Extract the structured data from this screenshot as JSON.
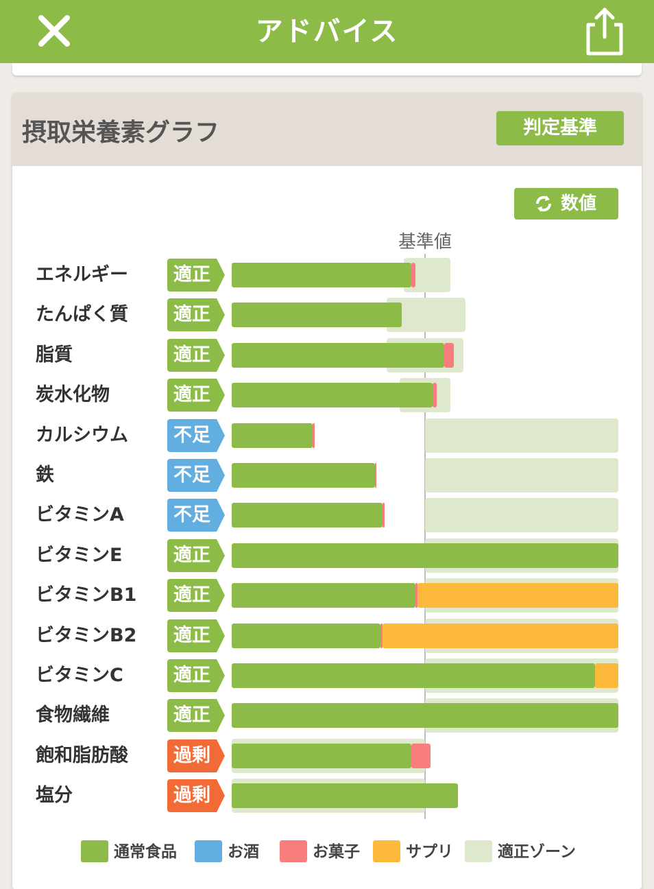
{
  "header": {
    "title": "アドバイス",
    "close_icon": "close-icon",
    "share_icon": "share-icon"
  },
  "card": {
    "title": "摂取栄養素グラフ",
    "criteria_button": "判定基準",
    "numeric_button": "数値",
    "reference_label": "基準値"
  },
  "colors": {
    "normal_food": "#8dbb47",
    "alcohol": "#62aee0",
    "sweets": "#f87d7d",
    "supplement": "#fcb93c",
    "zone": "#dde8cc",
    "status_ok": "#8dbb47",
    "status_low": "#62aee0",
    "status_high": "#f26a35"
  },
  "status_labels": {
    "ok": "適正",
    "low": "不足",
    "high": "過剰"
  },
  "chart_data": {
    "type": "bar",
    "stacked": true,
    "orientation": "horizontal",
    "reference": 100,
    "unit": "percent of reference",
    "categories": [
      "エネルギー",
      "たんぱく質",
      "脂質",
      "炭水化物",
      "カルシウム",
      "鉄",
      "ビタミンA",
      "ビタミンE",
      "ビタミンB1",
      "ビタミンB2",
      "ビタミンC",
      "食物繊維",
      "飽和脂肪酸",
      "塩分"
    ],
    "status": [
      "ok",
      "ok",
      "ok",
      "ok",
      "low",
      "low",
      "low",
      "ok",
      "ok",
      "ok",
      "ok",
      "ok",
      "high",
      "high"
    ],
    "series": [
      {
        "name": "通常食品",
        "values": [
          93,
          88,
          110,
          104,
          42,
          74,
          78,
          200,
          95,
          77,
          188,
          200,
          93,
          117
        ]
      },
      {
        "name": "お酒",
        "values": [
          0,
          0,
          0,
          0,
          0,
          0,
          0,
          0,
          0,
          0,
          0,
          0,
          0,
          0
        ]
      },
      {
        "name": "お菓子",
        "values": [
          2,
          0,
          5,
          2,
          1,
          1,
          1,
          0,
          1,
          1,
          0,
          0,
          10,
          0
        ]
      },
      {
        "name": "サプリ",
        "values": [
          0,
          0,
          0,
          0,
          0,
          0,
          0,
          0,
          104,
          122,
          12,
          0,
          0,
          0
        ]
      }
    ],
    "appropriate_zone": [
      [
        89,
        113
      ],
      [
        80,
        121
      ],
      [
        80,
        120
      ],
      [
        87,
        113
      ],
      [
        100,
        200
      ],
      [
        100,
        200
      ],
      [
        100,
        200
      ],
      [
        100,
        200
      ],
      [
        100,
        200
      ],
      [
        100,
        200
      ],
      [
        100,
        200
      ],
      [
        100,
        200
      ],
      [
        0,
        100
      ],
      [
        0,
        100
      ]
    ],
    "xlim": [
      0,
      200
    ],
    "legend": [
      "通常食品",
      "お酒",
      "お菓子",
      "サプリ",
      "適正ゾーン"
    ],
    "legend_position": "bottom"
  }
}
